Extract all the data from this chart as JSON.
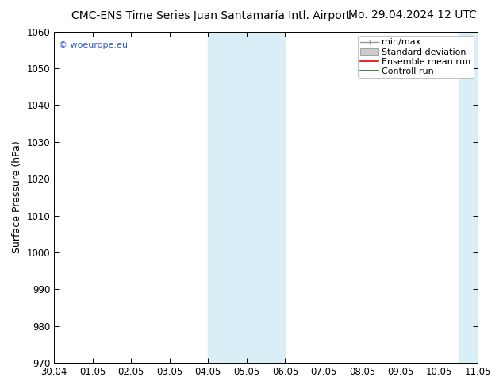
{
  "title_left": "CMC-ENS Time Series Juan Santamaría Intl. Airport",
  "title_right": "Mo. 29.04.2024 12 UTC",
  "ylabel": "Surface Pressure (hPa)",
  "ylim": [
    970,
    1060
  ],
  "yticks": [
    970,
    980,
    990,
    1000,
    1010,
    1020,
    1030,
    1040,
    1050,
    1060
  ],
  "x_labels": [
    "30.04",
    "01.05",
    "02.05",
    "03.05",
    "04.05",
    "05.05",
    "06.05",
    "07.05",
    "08.05",
    "09.05",
    "10.05",
    "11.05"
  ],
  "x_values": [
    0,
    1,
    2,
    3,
    4,
    5,
    6,
    7,
    8,
    9,
    10,
    11
  ],
  "shaded_bands": [
    {
      "xmin": 4.0,
      "xmax": 5.0
    },
    {
      "xmin": 5.0,
      "xmax": 6.0
    },
    {
      "xmin": 10.5,
      "xmax": 11.0
    },
    {
      "xmin": 11.0,
      "xmax": 11.05
    }
  ],
  "shade_color": "#daeef8",
  "shade_alpha": 1.0,
  "watermark": "© woeurope.eu",
  "watermark_color": "#3355cc",
  "background_color": "#ffffff",
  "legend_items": [
    "min/max",
    "Standard deviation",
    "Ensemble mean run",
    "Controll run"
  ],
  "legend_colors": [
    "#999999",
    "#cccccc",
    "#dd0000",
    "#008800"
  ],
  "title_fontsize": 10,
  "axis_label_fontsize": 9,
  "tick_fontsize": 8.5,
  "legend_fontsize": 8
}
